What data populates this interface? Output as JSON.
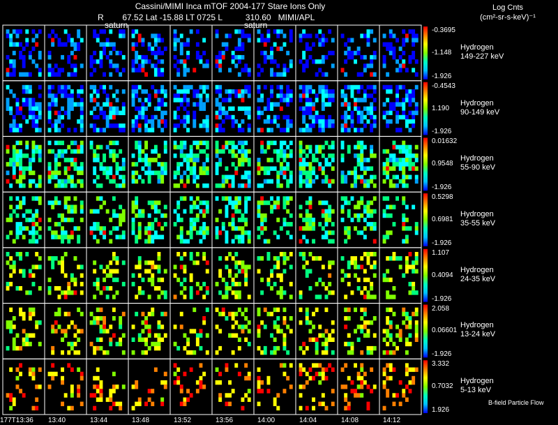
{
  "header": {
    "title": "Cassini/MIMI Inca mTOF  2004-177    Stare    Ions Only",
    "coords": "R        67.52 Lat -15.88 LT 0725 L          310.60   MIMI/APL",
    "saturn_labels": [
      "saturn",
      "saturn"
    ]
  },
  "legend": {
    "title_line1": "Log Cnts",
    "title_line2": "(cm²-sr-s-keV)⁻¹"
  },
  "footer": {
    "bfield_label": "B-field Particle Flow"
  },
  "chart_data": {
    "type": "heatmap",
    "x_label": "",
    "time_labels": [
      "177T13:36",
      "13:40",
      "13:44",
      "13:48",
      "13:52",
      "13:56",
      "14:00",
      "14:04",
      "14:08",
      "14:12"
    ],
    "rows": [
      {
        "species": "Hydrogen",
        "energy": "149-227 keV",
        "cbar": [
          "-0.3695",
          "-1.148",
          "-1.926"
        ],
        "mean_level": 0.12,
        "fill": 0.38
      },
      {
        "species": "Hydrogen",
        "energy": "90-149 keV",
        "cbar": [
          "-0.4543",
          "1.190",
          "-1.926"
        ],
        "mean_level": 0.16,
        "fill": 0.55
      },
      {
        "species": "Hydrogen",
        "energy": "55-90 keV",
        "cbar": [
          "0.01632",
          "0.9548",
          "-1.926"
        ],
        "mean_level": 0.4,
        "fill": 0.5
      },
      {
        "species": "Hydrogen",
        "energy": "35-55 keV",
        "cbar": [
          "0.5298",
          "0.6981",
          "-1.926"
        ],
        "mean_level": 0.44,
        "fill": 0.42
      },
      {
        "species": "Hydrogen",
        "energy": "24-35 keV",
        "cbar": [
          "1.107",
          "0.4094",
          "-1.926"
        ],
        "mean_level": 0.58,
        "fill": 0.3
      },
      {
        "species": "Hydrogen",
        "energy": "13-24 keV",
        "cbar": [
          "2.058",
          "0.06601",
          "-1.926"
        ],
        "mean_level": 0.62,
        "fill": 0.3
      },
      {
        "species": "Hydrogen",
        "energy": "5-13 keV",
        "cbar": [
          "3.332",
          "0.7032",
          "1.926"
        ],
        "mean_level": 0.78,
        "fill": 0.25
      }
    ],
    "colors": [
      "#0000ff",
      "#00a0ff",
      "#00ffff",
      "#00ff80",
      "#80ff00",
      "#ffff00",
      "#ff8000",
      "#ff0000"
    ]
  }
}
